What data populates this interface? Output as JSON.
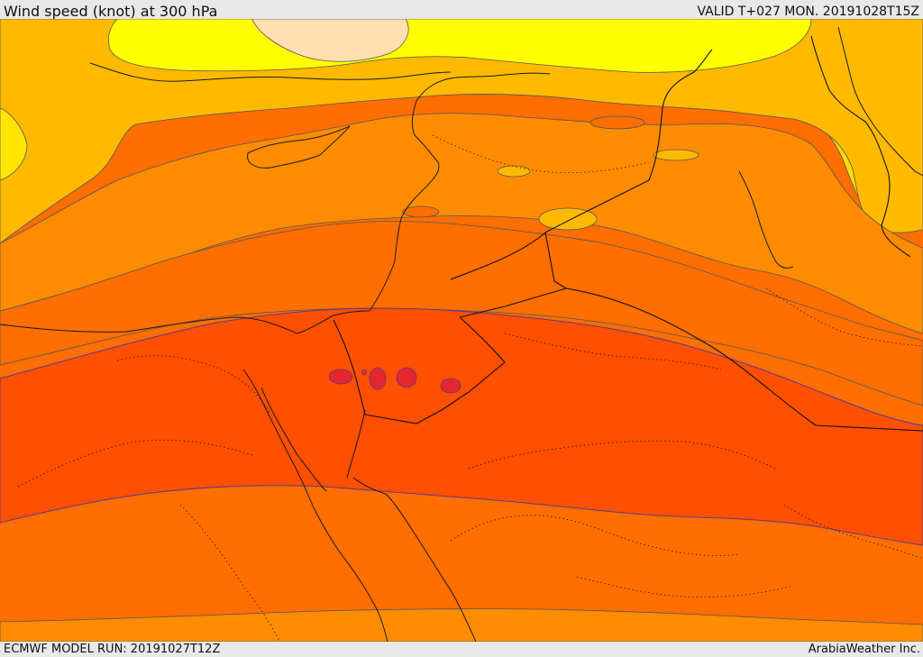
{
  "header": {
    "title": "Wind speed (knot) at 300 hPa",
    "valid": "VALID T+027 MON. 20191028T15Z"
  },
  "footer": {
    "model_run": "ECMWF MODEL RUN: 20191027T12Z",
    "credit": "ArabiaWeather Inc."
  },
  "map": {
    "region": "Eastern Mediterranean / Levant / Middle East",
    "field": "300 hPa wind speed (knots)",
    "palette": {
      "band_lightest": "#ffdfae",
      "band_yellow": "#ffff00",
      "band_gold": "#ffdc00",
      "band_amber": "#ffba00",
      "band_orange": "#ff8c00",
      "band_dark_orange": "#ff6e00",
      "band_red_orange": "#ff4f00",
      "band_core": "#ff3a00",
      "band_max_spots": "#e6262e",
      "band_upper_light": "#ffa200"
    }
  }
}
